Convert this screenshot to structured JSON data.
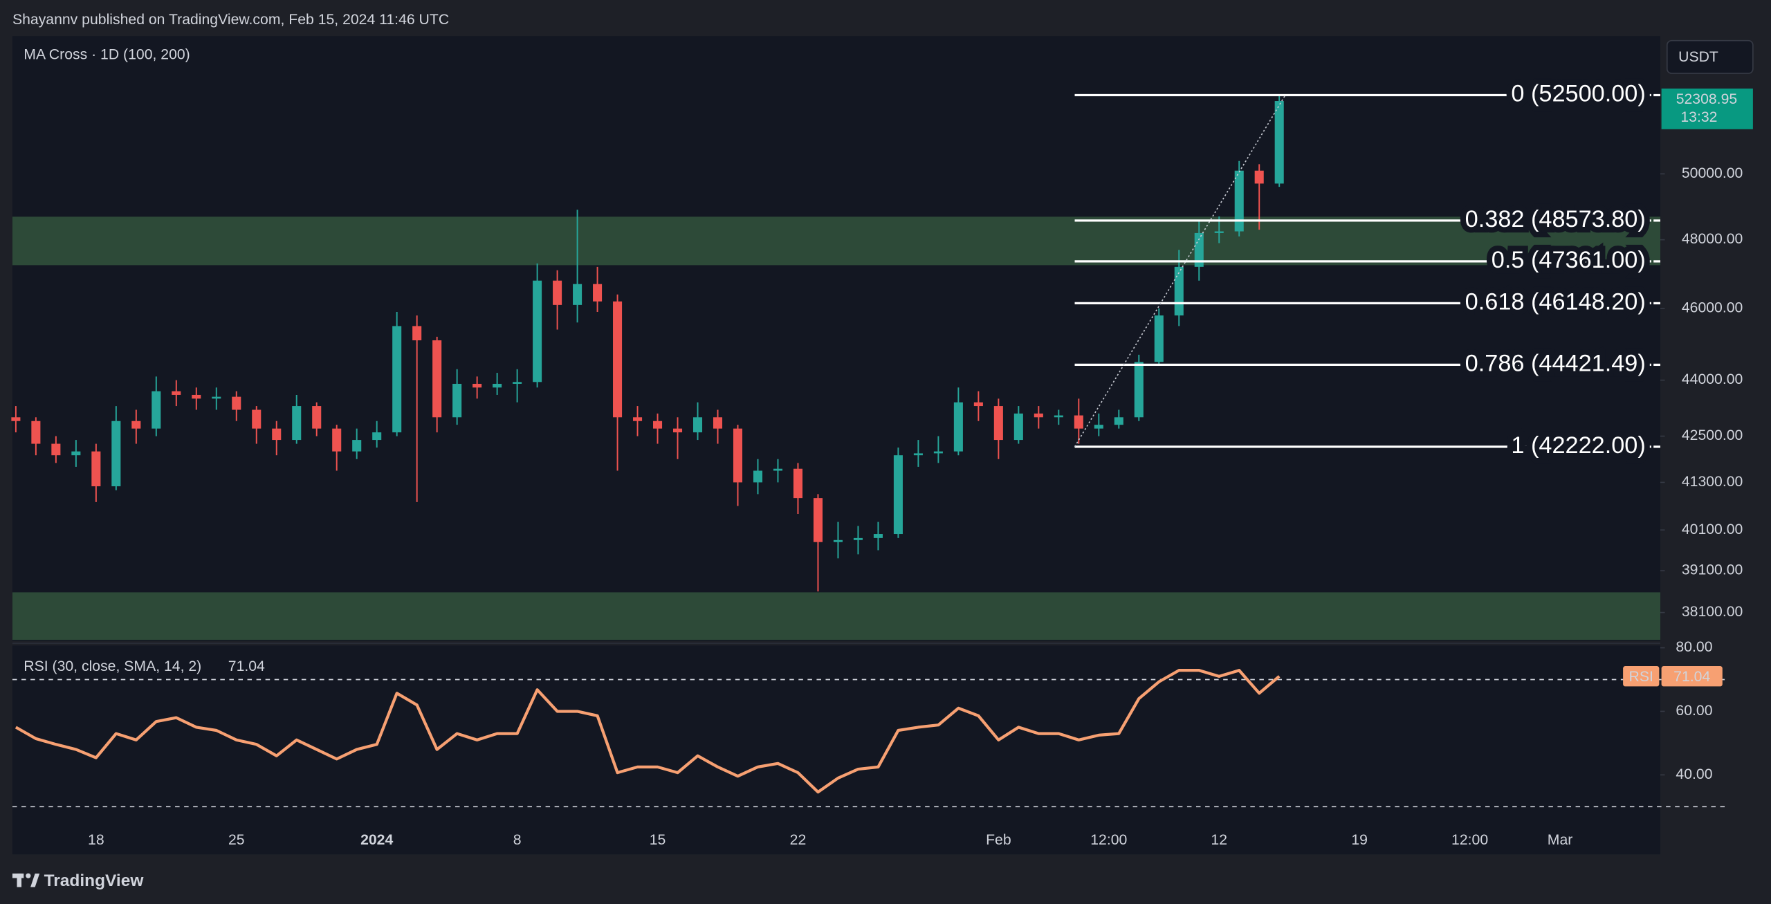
{
  "header": {
    "publisher": "Shayannv published on TradingView.com, Feb 15, 2024 11:46 UTC",
    "currency": "USDT"
  },
  "footer": {
    "brand": "TradingView"
  },
  "chart_data": [
    {
      "type": "candlestick",
      "title": "MA Cross · 1D (100, 200)",
      "log": true,
      "up_color": "#26a69a",
      "down_color": "#ef5350",
      "x": [
        -4,
        -3,
        -2,
        -1,
        0,
        1,
        2,
        3,
        4,
        5,
        6,
        7,
        8,
        9,
        10,
        11,
        12,
        13,
        14,
        15,
        16,
        17,
        18,
        19,
        20,
        21,
        22,
        23,
        24,
        25,
        26,
        27,
        28,
        29,
        30,
        31,
        32,
        33,
        34,
        35,
        36,
        37,
        38,
        39,
        40,
        41,
        42,
        43,
        44,
        45,
        46,
        47,
        48,
        49,
        50,
        51,
        52,
        53,
        54,
        55,
        56,
        57,
        58,
        59
      ],
      "open": [
        43000,
        42900,
        42300,
        42000,
        42100,
        41200,
        42900,
        42700,
        43700,
        43600,
        43500,
        43550,
        43200,
        42700,
        42400,
        43300,
        42700,
        42100,
        42400,
        42600,
        45500,
        45100,
        43000,
        43900,
        43800,
        43900,
        43950,
        46800,
        46100,
        46700,
        46200,
        43000,
        42900,
        42700,
        42600,
        43000,
        42700,
        41300,
        41600,
        41650,
        40900,
        39800,
        39850,
        39900,
        40000,
        42000,
        42050,
        42100,
        43400,
        43300,
        42400,
        43100,
        43000,
        43050,
        42700,
        42800,
        43000,
        44500,
        45800,
        47200,
        48200,
        48250,
        50100,
        49700
      ],
      "high": [
        43300,
        43000,
        42500,
        42400,
        42300,
        43300,
        43200,
        44100,
        44000,
        43800,
        43800,
        43700,
        43300,
        42900,
        43600,
        43400,
        42800,
        42700,
        42900,
        45900,
        45800,
        45200,
        44300,
        44100,
        44200,
        44300,
        47300,
        47100,
        48900,
        47200,
        46400,
        43300,
        43100,
        43000,
        43400,
        43200,
        42800,
        41900,
        41900,
        41800,
        41000,
        40300,
        40200,
        40300,
        42200,
        42400,
        42500,
        43800,
        43700,
        43500,
        43300,
        43300,
        43200,
        43500,
        43100,
        43200,
        44700,
        46000,
        47700,
        48600,
        48700,
        50400,
        50300,
        52500
      ],
      "low": [
        42600,
        42000,
        41800,
        41700,
        40800,
        41100,
        42300,
        42500,
        43300,
        43200,
        43200,
        42900,
        42300,
        42000,
        42300,
        42500,
        41600,
        41900,
        42200,
        42500,
        40800,
        42600,
        42800,
        43500,
        43600,
        43400,
        43800,
        45400,
        45600,
        45900,
        41600,
        42500,
        42300,
        41900,
        42400,
        42300,
        40700,
        41000,
        41300,
        40500,
        38600,
        39400,
        39500,
        39600,
        39900,
        41700,
        41800,
        42000,
        42900,
        41900,
        42300,
        42700,
        42800,
        42300,
        42500,
        42700,
        42900,
        44400,
        45500,
        46800,
        47900,
        48100,
        48300,
        49600
      ],
      "close": [
        42900,
        42300,
        42000,
        42100,
        41200,
        42900,
        42700,
        43700,
        43600,
        43500,
        43550,
        43200,
        42700,
        42400,
        43300,
        42700,
        42100,
        42400,
        42600,
        45500,
        45100,
        43000,
        43900,
        43800,
        43900,
        43950,
        46800,
        46100,
        46700,
        46200,
        43000,
        42900,
        42700,
        42600,
        43000,
        42700,
        41300,
        41600,
        41650,
        40900,
        39800,
        39850,
        39900,
        40000,
        42000,
        42050,
        42100,
        43400,
        43300,
        42400,
        43100,
        43000,
        43050,
        42700,
        42800,
        43000,
        44500,
        45800,
        47200,
        48200,
        48250,
        50100,
        49700,
        52308.95
      ],
      "last_time": "13:32",
      "tag_color": "#089981",
      "xlim": [
        -4.17,
        78
      ],
      "ylim": [
        37459,
        54455
      ],
      "xticks": [
        {
          "value": 0,
          "label": "18"
        },
        {
          "value": 7,
          "label": "25"
        },
        {
          "value": 14,
          "label": "2024",
          "bold": true
        },
        {
          "value": 21,
          "label": "8"
        },
        {
          "value": 28,
          "label": "15"
        },
        {
          "value": 35,
          "label": "22"
        },
        {
          "value": 45,
          "label": "Feb"
        },
        {
          "value": 50.5,
          "label": "12:00"
        },
        {
          "value": 56,
          "label": "12"
        },
        {
          "value": 63,
          "label": "19"
        },
        {
          "value": 68.5,
          "label": "12:00"
        },
        {
          "value": 73,
          "label": "Mar"
        }
      ],
      "yticks": [
        {
          "value": 50000,
          "label": "50000.00"
        },
        {
          "value": 48000,
          "label": "48000.00"
        },
        {
          "value": 46000,
          "label": "46000.00"
        },
        {
          "value": 44000,
          "label": "44000.00"
        },
        {
          "value": 42500,
          "label": "42500.00"
        },
        {
          "value": 41300,
          "label": "41300.00"
        },
        {
          "value": 40100,
          "label": "40100.00"
        },
        {
          "value": 39100,
          "label": "39100.00"
        },
        {
          "value": 38100,
          "label": "38100.00"
        }
      ],
      "zones": [
        [
          48690,
          47250
        ],
        [
          38580,
          37459
        ]
      ],
      "zone_color": "#2d4a38",
      "fib": {
        "x": [
          48.8,
          59.3
        ],
        "levels": [
          {
            "value": 52500,
            "label": "0 (52500.00)"
          },
          {
            "value": 48573.8,
            "label": "0.382 (48573.80)"
          },
          {
            "value": 47361,
            "label": "0.5 (47361.00)"
          },
          {
            "value": 46148.2,
            "label": "0.618 (46148.20)"
          },
          {
            "value": 44421.49,
            "label": "0.786 (44421.49)"
          },
          {
            "value": 42222,
            "label": "1 (42222.00)"
          }
        ]
      }
    },
    {
      "type": "line",
      "title": "RSI (30, close, SMA, 14, 2)",
      "tag": "RSI",
      "color": "#f7a072",
      "x": [
        -4,
        -3,
        -2,
        -1,
        0,
        1,
        2,
        3,
        4,
        5,
        6,
        7,
        8,
        9,
        10,
        11,
        12,
        13,
        14,
        15,
        16,
        17,
        18,
        19,
        20,
        21,
        22,
        23,
        24,
        25,
        26,
        27,
        28,
        29,
        30,
        31,
        32,
        33,
        34,
        35,
        36,
        37,
        38,
        39,
        40,
        41,
        42,
        43,
        44,
        45,
        46,
        47,
        48,
        49,
        50,
        51,
        52,
        53,
        54,
        55,
        56,
        57,
        58,
        59
      ],
      "values": [
        55,
        51.4,
        49.6,
        48,
        45.4,
        53,
        51,
        56.8,
        58,
        55,
        54,
        51,
        49.6,
        46,
        51,
        48,
        45,
        48,
        49.6,
        65.7,
        62,
        48,
        53,
        51,
        53,
        53,
        66.8,
        60,
        60,
        58.6,
        40.7,
        42.5,
        42.5,
        40.7,
        46,
        42.5,
        39.6,
        42.5,
        43.6,
        40.7,
        34.6,
        39,
        41.8,
        42.5,
        54,
        55,
        55.7,
        61,
        58.6,
        51,
        55,
        53,
        53,
        51,
        52.5,
        53,
        64,
        69.3,
        72.9,
        72.9,
        71,
        72.9,
        65.7,
        71.04
      ],
      "ylim": [
        15,
        80.7
      ],
      "yticks": [
        {
          "value": 80,
          "label": "80.00"
        },
        {
          "value": 60,
          "label": "60.00"
        },
        {
          "value": 40,
          "label": "40.00"
        }
      ],
      "bands": [
        70,
        30
      ]
    }
  ]
}
